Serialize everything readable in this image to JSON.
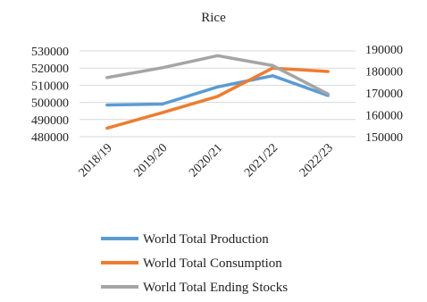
{
  "chart_data": {
    "type": "line",
    "title": "Rice",
    "categories": [
      "2018/19",
      "2019/20",
      "2020/21",
      "2021/22",
      "2022/23"
    ],
    "y_left": {
      "min": 480000,
      "max": 530000,
      "step": 10000,
      "ticks": [
        "480000",
        "490000",
        "500000",
        "510000",
        "520000",
        "530000"
      ]
    },
    "y_right": {
      "min": 150000,
      "max": 190000,
      "step": 10000,
      "ticks": [
        "150000",
        "160000",
        "170000",
        "180000",
        "190000"
      ]
    },
    "series": [
      {
        "name": "World Total Production",
        "axis": "left",
        "color": "#5B9BD5",
        "values": [
          498500,
          499000,
          509000,
          515500,
          504000
        ]
      },
      {
        "name": "World Total Consumption",
        "axis": "left",
        "color": "#ED7D31",
        "values": [
          485000,
          494000,
          503500,
          520000,
          518000
        ]
      },
      {
        "name": "World Total Ending Stocks",
        "axis": "right",
        "color": "#A5A5A5",
        "values": [
          177000,
          181500,
          187000,
          182500,
          169500
        ]
      }
    ],
    "grid": true,
    "legend_position": "bottom"
  }
}
